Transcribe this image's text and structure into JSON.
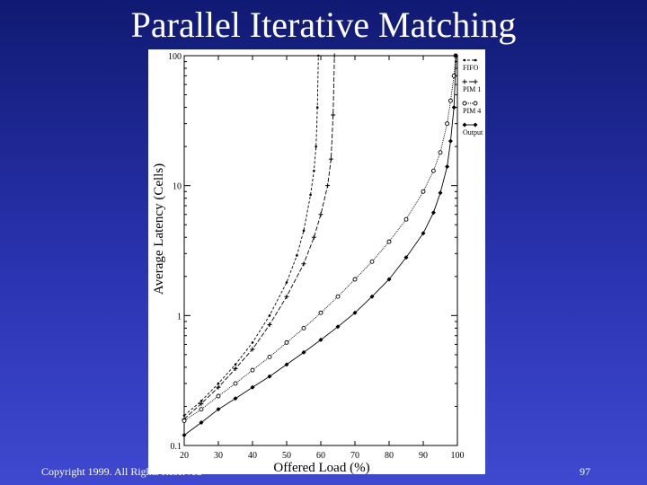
{
  "slide": {
    "title": "Parallel Iterative Matching",
    "copyright": "Copyright 1999. All Rights Reserved",
    "page_number": "97"
  },
  "chart_data": {
    "type": "line",
    "title": "",
    "xlabel": "Offered Load (%)",
    "ylabel": "Average Latency (Cells)",
    "xlim": [
      20,
      100
    ],
    "ylim": [
      0.1,
      100
    ],
    "yscale": "log",
    "grid": false,
    "legend_position": "top-right",
    "x_ticks": [
      20,
      30,
      40,
      50,
      60,
      70,
      80,
      90,
      100
    ],
    "x_tick_labels": [
      "20",
      "30",
      "40",
      "50",
      "60",
      "70",
      "80",
      "90",
      "100"
    ],
    "y_ticks": [
      0.1,
      1,
      10,
      100
    ],
    "y_tick_labels": [
      "0.1",
      "1",
      "10",
      "100"
    ],
    "series": [
      {
        "name": "FIFO",
        "marker": "dot",
        "x": [
          20,
          25,
          30,
          35,
          40,
          45,
          50,
          53,
          55,
          57,
          58,
          58.6,
          59,
          59.3
        ],
        "y": [
          0.17,
          0.22,
          0.3,
          0.42,
          0.62,
          1.0,
          1.8,
          2.9,
          4.5,
          8.5,
          13,
          20,
          40,
          100
        ]
      },
      {
        "name": "PIM 1",
        "marker": "plus",
        "x": [
          20,
          25,
          30,
          35,
          40,
          45,
          50,
          55,
          58,
          60,
          62,
          63,
          63.6,
          64
        ],
        "y": [
          0.16,
          0.21,
          0.28,
          0.39,
          0.55,
          0.85,
          1.4,
          2.5,
          4.0,
          6.0,
          10,
          16,
          35,
          100
        ]
      },
      {
        "name": "PIM 4",
        "marker": "circle",
        "x": [
          20,
          25,
          30,
          35,
          40,
          45,
          50,
          55,
          60,
          65,
          70,
          75,
          80,
          85,
          90,
          93,
          95,
          97,
          98,
          99,
          99.5
        ],
        "y": [
          0.155,
          0.19,
          0.24,
          0.3,
          0.38,
          0.48,
          0.62,
          0.8,
          1.05,
          1.4,
          1.9,
          2.6,
          3.7,
          5.5,
          9.0,
          13,
          18,
          30,
          45,
          70,
          100
        ]
      },
      {
        "name": "Output",
        "marker": "diamond",
        "x": [
          20,
          25,
          30,
          35,
          40,
          45,
          50,
          55,
          60,
          65,
          70,
          75,
          80,
          85,
          90,
          93,
          95,
          97,
          98,
          99,
          99.6
        ],
        "y": [
          0.12,
          0.15,
          0.19,
          0.23,
          0.28,
          0.34,
          0.42,
          0.52,
          0.65,
          0.82,
          1.05,
          1.4,
          1.9,
          2.8,
          4.3,
          6.2,
          8.8,
          14,
          22,
          40,
          100
        ]
      }
    ]
  }
}
